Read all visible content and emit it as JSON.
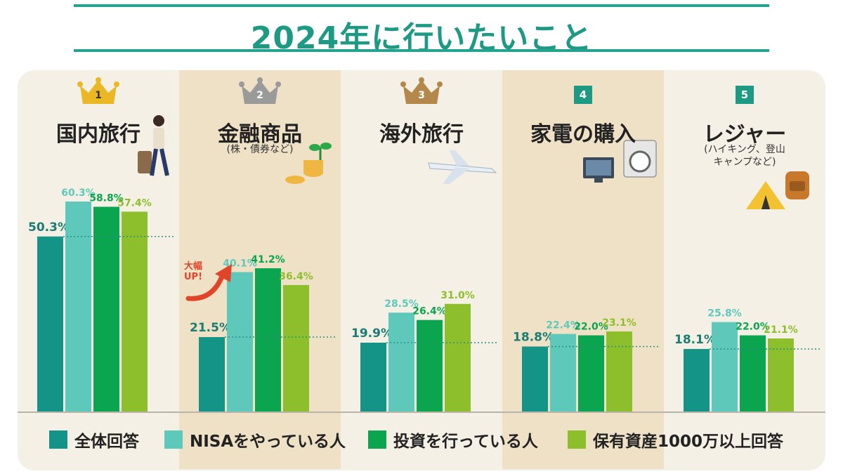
{
  "title": "2024年に行いたいこと",
  "colors": {
    "title_line": "#24a48c",
    "series": [
      "#149486",
      "#5ec9bb",
      "#0aa54e",
      "#8dbf2c"
    ],
    "stripe": "#efe1c6",
    "panel": "#f5f0e5",
    "annotation": "#e0452a"
  },
  "annotation": {
    "line1": "大幅",
    "line2": "UP!"
  },
  "chart_data": {
    "type": "bar",
    "categories": [
      {
        "rank": "1",
        "badge": "crown-gold",
        "name": "国内旅行",
        "sub": [],
        "icon": "traveler-suitcase-icon"
      },
      {
        "rank": "2",
        "badge": "crown-silver",
        "name": "金融商品",
        "sub": [
          "(株・債券など)"
        ],
        "icon": "coins-sprout-icon"
      },
      {
        "rank": "3",
        "badge": "crown-bronze",
        "name": "海外旅行",
        "sub": [],
        "icon": "airplane-icon"
      },
      {
        "rank": "4",
        "badge": "square-green",
        "name": "家電の購入",
        "sub": [],
        "icon": "tv-washing-machine-icon"
      },
      {
        "rank": "5",
        "badge": "square-green",
        "name": "レジャー",
        "sub": [
          "(ハイキング、登山",
          "キャンプなど)"
        ],
        "icon": "tent-backpack-icon"
      }
    ],
    "series": [
      {
        "name": "全体回答",
        "values": [
          50.3,
          21.5,
          19.9,
          18.8,
          18.1
        ],
        "labels": [
          "50.3",
          "21.5",
          "19.9",
          "18.8",
          "18.1"
        ]
      },
      {
        "name": "NISAをやっている人",
        "values": [
          60.3,
          40.1,
          28.5,
          22.4,
          25.8
        ],
        "labels": [
          "60.3",
          "40.1",
          "28.5",
          "22.4",
          "25.8"
        ]
      },
      {
        "name": "投資を行っている人",
        "values": [
          58.8,
          41.2,
          26.4,
          22.0,
          22.0
        ],
        "labels": [
          "58.8",
          "41.2",
          "26.4",
          "22.0",
          "22.0"
        ]
      },
      {
        "name": "保有資産1000万以上回答",
        "values": [
          57.4,
          36.4,
          31.0,
          23.1,
          21.1
        ],
        "labels": [
          "57.4",
          "36.4",
          "31.0",
          "23.1",
          "21.1"
        ]
      }
    ],
    "unit": "%",
    "ylim": [
      0,
      62
    ]
  }
}
